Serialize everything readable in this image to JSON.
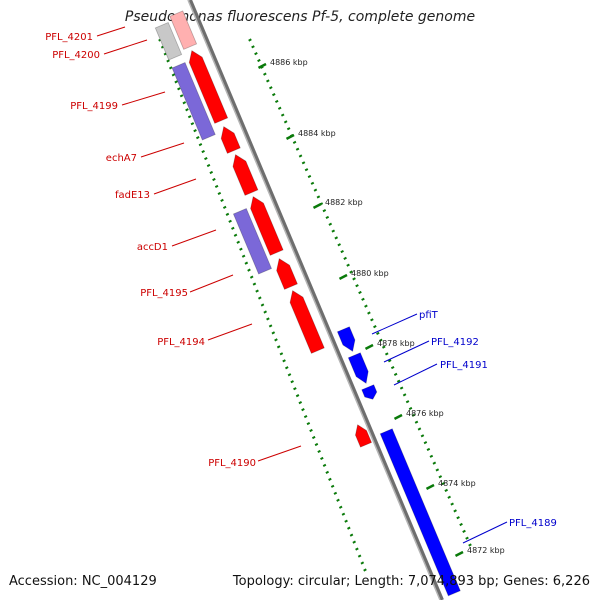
{
  "title": "Pseudomonas fluorescens Pf-5, complete genome",
  "footer": {
    "accession": "Accession: NC_004129",
    "summary": "Topology: circular; Length: 7,074,893 bp; Genes: 6,226"
  },
  "colors": {
    "forward_gene": "#ff0000",
    "reverse_gene": "#0000ff",
    "purple_gene": "#7b68d8",
    "grey_gene": "#c8c8c8",
    "pink_gene": "#ffb0b0",
    "tick": "#0a7a0a",
    "backbone": "#888888"
  },
  "scale_ticks": [
    {
      "kbp": 4886,
      "label": "4886 kbp"
    },
    {
      "kbp": 4884,
      "label": "4884 kbp"
    },
    {
      "kbp": 4882,
      "label": "4882 kbp"
    },
    {
      "kbp": 4880,
      "label": "4880 kbp"
    },
    {
      "kbp": 4878,
      "label": "4878 kbp"
    },
    {
      "kbp": 4876,
      "label": "4876 kbp"
    },
    {
      "kbp": 4874,
      "label": "4874 kbp"
    },
    {
      "kbp": 4872,
      "label": "4872 kbp"
    }
  ],
  "gene_labels": [
    {
      "name": "PFL_4201",
      "strand": "forward"
    },
    {
      "name": "PFL_4200",
      "strand": "forward"
    },
    {
      "name": "PFL_4199",
      "strand": "forward"
    },
    {
      "name": "echA7",
      "strand": "forward"
    },
    {
      "name": "fadE13",
      "strand": "forward"
    },
    {
      "name": "accD1",
      "strand": "forward"
    },
    {
      "name": "PFL_4195",
      "strand": "forward"
    },
    {
      "name": "PFL_4194",
      "strand": "forward"
    },
    {
      "name": "PFL_4190",
      "strand": "forward"
    },
    {
      "name": "pfiT",
      "strand": "reverse"
    },
    {
      "name": "PFL_4192",
      "strand": "reverse"
    },
    {
      "name": "PFL_4191",
      "strand": "reverse"
    },
    {
      "name": "PFL_4189",
      "strand": "reverse"
    }
  ]
}
